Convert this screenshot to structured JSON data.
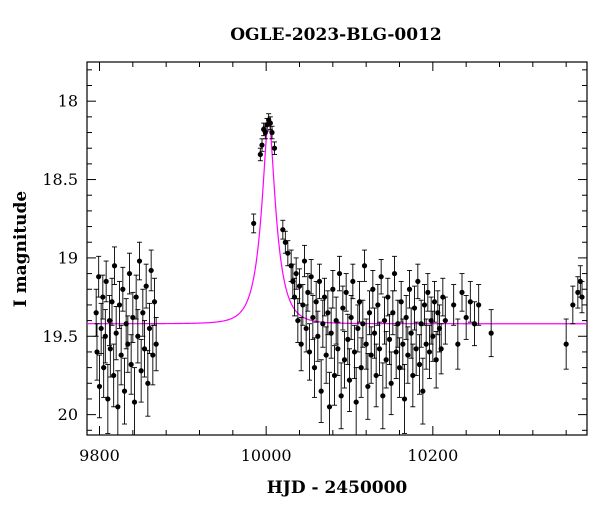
{
  "chart_data": {
    "type": "scatter",
    "title": "OGLE-2023-BLG-0012",
    "xlabel": "HJD - 2450000",
    "ylabel": "I magnitude",
    "xlim": [
      9785,
      10385
    ],
    "ylim": [
      20.13,
      17.75
    ],
    "y_inverted": true,
    "grid": false,
    "x_ticks": [
      9800,
      10000,
      10200
    ],
    "y_ticks": [
      18,
      18.5,
      19,
      19.5,
      20
    ],
    "x_tick_labels": [
      "9800",
      "10000",
      "10200"
    ],
    "y_tick_labels": [
      "18",
      "18.5",
      "19",
      "19.5",
      "20"
    ],
    "model": {
      "name": "",
      "color": "#ff00ff",
      "baseline_mag": 19.42,
      "peak_mag": 18.12,
      "t0": 10003,
      "tE": 18
    },
    "series": [
      {
        "name": "",
        "color": "#000000",
        "marker": "circle",
        "points": [
          {
            "x": 9796,
            "y": 19.35,
            "err": 0.15
          },
          {
            "x": 9797,
            "y": 19.6,
            "err": 0.18
          },
          {
            "x": 9799,
            "y": 19.12,
            "err": 0.13
          },
          {
            "x": 9800,
            "y": 19.82,
            "err": 0.2
          },
          {
            "x": 9802,
            "y": 19.45,
            "err": 0.16
          },
          {
            "x": 9804,
            "y": 19.25,
            "err": 0.14
          },
          {
            "x": 9805,
            "y": 19.7,
            "err": 0.19
          },
          {
            "x": 9807,
            "y": 19.5,
            "err": 0.17
          },
          {
            "x": 9808,
            "y": 19.15,
            "err": 0.13
          },
          {
            "x": 9810,
            "y": 19.9,
            "err": 0.22
          },
          {
            "x": 9812,
            "y": 19.4,
            "err": 0.16
          },
          {
            "x": 9813,
            "y": 19.58,
            "err": 0.18
          },
          {
            "x": 9815,
            "y": 19.28,
            "err": 0.15
          },
          {
            "x": 9817,
            "y": 19.75,
            "err": 0.2
          },
          {
            "x": 9818,
            "y": 19.05,
            "err": 0.12
          },
          {
            "x": 9820,
            "y": 19.48,
            "err": 0.17
          },
          {
            "x": 9822,
            "y": 19.95,
            "err": 0.23
          },
          {
            "x": 9824,
            "y": 19.3,
            "err": 0.15
          },
          {
            "x": 9826,
            "y": 19.62,
            "err": 0.19
          },
          {
            "x": 9828,
            "y": 19.2,
            "err": 0.14
          },
          {
            "x": 9830,
            "y": 19.85,
            "err": 0.21
          },
          {
            "x": 9832,
            "y": 19.42,
            "err": 0.16
          },
          {
            "x": 9834,
            "y": 19.55,
            "err": 0.18
          },
          {
            "x": 9836,
            "y": 19.1,
            "err": 0.13
          },
          {
            "x": 9838,
            "y": 19.68,
            "err": 0.19
          },
          {
            "x": 9840,
            "y": 19.38,
            "err": 0.16
          },
          {
            "x": 9842,
            "y": 19.92,
            "err": 0.22
          },
          {
            "x": 9844,
            "y": 19.25,
            "err": 0.14
          },
          {
            "x": 9846,
            "y": 19.5,
            "err": 0.17
          },
          {
            "x": 9848,
            "y": 19.02,
            "err": 0.12
          },
          {
            "x": 9850,
            "y": 19.72,
            "err": 0.2
          },
          {
            "x": 9852,
            "y": 19.35,
            "err": 0.15
          },
          {
            "x": 9854,
            "y": 19.58,
            "err": 0.18
          },
          {
            "x": 9856,
            "y": 19.18,
            "err": 0.14
          },
          {
            "x": 9858,
            "y": 19.8,
            "err": 0.21
          },
          {
            "x": 9860,
            "y": 19.45,
            "err": 0.16
          },
          {
            "x": 9862,
            "y": 19.08,
            "err": 0.13
          },
          {
            "x": 9864,
            "y": 19.62,
            "err": 0.19
          },
          {
            "x": 9866,
            "y": 19.28,
            "err": 0.15
          },
          {
            "x": 9868,
            "y": 19.55,
            "err": 0.17
          },
          {
            "x": 9985,
            "y": 18.78,
            "err": 0.06
          },
          {
            "x": 9993,
            "y": 18.34,
            "err": 0.04
          },
          {
            "x": 9995,
            "y": 18.28,
            "err": 0.04
          },
          {
            "x": 9997,
            "y": 18.18,
            "err": 0.04
          },
          {
            "x": 9999,
            "y": 18.2,
            "err": 0.04
          },
          {
            "x": 10001,
            "y": 18.15,
            "err": 0.04
          },
          {
            "x": 10003,
            "y": 18.12,
            "err": 0.04
          },
          {
            "x": 10005,
            "y": 18.14,
            "err": 0.04
          },
          {
            "x": 10007,
            "y": 18.2,
            "err": 0.04
          },
          {
            "x": 10010,
            "y": 18.3,
            "err": 0.04
          },
          {
            "x": 10020,
            "y": 18.82,
            "err": 0.06
          },
          {
            "x": 10023,
            "y": 18.9,
            "err": 0.07
          },
          {
            "x": 10026,
            "y": 18.97,
            "err": 0.08
          },
          {
            "x": 10030,
            "y": 19.05,
            "err": 0.1
          },
          {
            "x": 10032,
            "y": 19.15,
            "err": 0.11
          },
          {
            "x": 10034,
            "y": 19.25,
            "err": 0.12
          },
          {
            "x": 10036,
            "y": 19.1,
            "err": 0.1
          },
          {
            "x": 10038,
            "y": 19.4,
            "err": 0.14
          },
          {
            "x": 10040,
            "y": 19.18,
            "err": 0.11
          },
          {
            "x": 10042,
            "y": 19.55,
            "err": 0.17
          },
          {
            "x": 10044,
            "y": 19.3,
            "err": 0.13
          },
          {
            "x": 10046,
            "y": 19.02,
            "err": 0.1
          },
          {
            "x": 10048,
            "y": 19.45,
            "err": 0.15
          },
          {
            "x": 10050,
            "y": 19.22,
            "err": 0.12
          },
          {
            "x": 10052,
            "y": 19.6,
            "err": 0.18
          },
          {
            "x": 10054,
            "y": 19.12,
            "err": 0.11
          },
          {
            "x": 10056,
            "y": 19.38,
            "err": 0.14
          },
          {
            "x": 10058,
            "y": 19.7,
            "err": 0.19
          },
          {
            "x": 10060,
            "y": 19.28,
            "err": 0.13
          },
          {
            "x": 10062,
            "y": 19.5,
            "err": 0.16
          },
          {
            "x": 10064,
            "y": 19.15,
            "err": 0.11
          },
          {
            "x": 10066,
            "y": 19.85,
            "err": 0.2
          },
          {
            "x": 10068,
            "y": 19.42,
            "err": 0.15
          },
          {
            "x": 10070,
            "y": 19.25,
            "err": 0.12
          },
          {
            "x": 10072,
            "y": 19.62,
            "err": 0.18
          },
          {
            "x": 10074,
            "y": 19.35,
            "err": 0.14
          },
          {
            "x": 10076,
            "y": 19.95,
            "err": 0.22
          },
          {
            "x": 10078,
            "y": 19.48,
            "err": 0.16
          },
          {
            "x": 10080,
            "y": 19.2,
            "err": 0.12
          },
          {
            "x": 10082,
            "y": 19.75,
            "err": 0.19
          },
          {
            "x": 10084,
            "y": 19.4,
            "err": 0.15
          },
          {
            "x": 10086,
            "y": 19.58,
            "err": 0.17
          },
          {
            "x": 10088,
            "y": 19.1,
            "err": 0.11
          },
          {
            "x": 10090,
            "y": 19.88,
            "err": 0.21
          },
          {
            "x": 10092,
            "y": 19.32,
            "err": 0.14
          },
          {
            "x": 10094,
            "y": 19.65,
            "err": 0.18
          },
          {
            "x": 10096,
            "y": 19.22,
            "err": 0.12
          },
          {
            "x": 10098,
            "y": 19.52,
            "err": 0.16
          },
          {
            "x": 10100,
            "y": 19.78,
            "err": 0.2
          },
          {
            "x": 10102,
            "y": 19.38,
            "err": 0.14
          },
          {
            "x": 10104,
            "y": 19.15,
            "err": 0.11
          },
          {
            "x": 10106,
            "y": 19.6,
            "err": 0.17
          },
          {
            "x": 10108,
            "y": 19.92,
            "err": 0.22
          },
          {
            "x": 10110,
            "y": 19.45,
            "err": 0.15
          },
          {
            "x": 10112,
            "y": 19.28,
            "err": 0.13
          },
          {
            "x": 10114,
            "y": 19.7,
            "err": 0.19
          },
          {
            "x": 10116,
            "y": 19.42,
            "err": 0.15
          },
          {
            "x": 10118,
            "y": 19.05,
            "err": 0.1
          },
          {
            "x": 10120,
            "y": 19.55,
            "err": 0.16
          },
          {
            "x": 10122,
            "y": 19.82,
            "err": 0.21
          },
          {
            "x": 10124,
            "y": 19.35,
            "err": 0.14
          },
          {
            "x": 10126,
            "y": 19.62,
            "err": 0.18
          },
          {
            "x": 10128,
            "y": 19.2,
            "err": 0.12
          },
          {
            "x": 10130,
            "y": 19.48,
            "err": 0.16
          },
          {
            "x": 10132,
            "y": 19.75,
            "err": 0.2
          },
          {
            "x": 10134,
            "y": 19.3,
            "err": 0.13
          },
          {
            "x": 10136,
            "y": 19.58,
            "err": 0.17
          },
          {
            "x": 10138,
            "y": 19.12,
            "err": 0.11
          },
          {
            "x": 10140,
            "y": 19.88,
            "err": 0.21
          },
          {
            "x": 10142,
            "y": 19.4,
            "err": 0.15
          },
          {
            "x": 10144,
            "y": 19.65,
            "err": 0.18
          },
          {
            "x": 10146,
            "y": 19.25,
            "err": 0.12
          },
          {
            "x": 10148,
            "y": 19.52,
            "err": 0.16
          },
          {
            "x": 10150,
            "y": 19.8,
            "err": 0.2
          },
          {
            "x": 10152,
            "y": 19.35,
            "err": 0.14
          },
          {
            "x": 10154,
            "y": 19.1,
            "err": 0.11
          },
          {
            "x": 10156,
            "y": 19.6,
            "err": 0.17
          },
          {
            "x": 10158,
            "y": 19.42,
            "err": 0.15
          },
          {
            "x": 10160,
            "y": 19.7,
            "err": 0.19
          },
          {
            "x": 10162,
            "y": 19.28,
            "err": 0.13
          },
          {
            "x": 10164,
            "y": 19.55,
            "err": 0.16
          },
          {
            "x": 10166,
            "y": 19.9,
            "err": 0.22
          },
          {
            "x": 10168,
            "y": 19.38,
            "err": 0.14
          },
          {
            "x": 10170,
            "y": 19.62,
            "err": 0.18
          },
          {
            "x": 10172,
            "y": 19.2,
            "err": 0.12
          },
          {
            "x": 10174,
            "y": 19.48,
            "err": 0.16
          },
          {
            "x": 10176,
            "y": 19.75,
            "err": 0.2
          },
          {
            "x": 10178,
            "y": 19.32,
            "err": 0.14
          },
          {
            "x": 10180,
            "y": 19.58,
            "err": 0.17
          },
          {
            "x": 10182,
            "y": 19.15,
            "err": 0.11
          },
          {
            "x": 10184,
            "y": 19.68,
            "err": 0.19
          },
          {
            "x": 10186,
            "y": 19.42,
            "err": 0.15
          },
          {
            "x": 10188,
            "y": 19.85,
            "err": 0.21
          },
          {
            "x": 10190,
            "y": 19.3,
            "err": 0.13
          },
          {
            "x": 10192,
            "y": 19.55,
            "err": 0.16
          },
          {
            "x": 10194,
            "y": 19.22,
            "err": 0.12
          },
          {
            "x": 10196,
            "y": 19.6,
            "err": 0.17
          },
          {
            "x": 10198,
            "y": 19.4,
            "err": 0.15
          },
          {
            "x": 10200,
            "y": 19.5,
            "err": 0.16
          },
          {
            "x": 10202,
            "y": 19.28,
            "err": 0.13
          },
          {
            "x": 10204,
            "y": 19.65,
            "err": 0.18
          },
          {
            "x": 10206,
            "y": 19.35,
            "err": 0.14
          },
          {
            "x": 10208,
            "y": 19.45,
            "err": 0.15
          },
          {
            "x": 10210,
            "y": 19.58,
            "err": 0.16
          },
          {
            "x": 10212,
            "y": 19.25,
            "err": 0.12
          },
          {
            "x": 10215,
            "y": 19.4,
            "err": 0.15
          },
          {
            "x": 10225,
            "y": 19.3,
            "err": 0.13
          },
          {
            "x": 10230,
            "y": 19.55,
            "err": 0.16
          },
          {
            "x": 10235,
            "y": 19.22,
            "err": 0.12
          },
          {
            "x": 10240,
            "y": 19.38,
            "err": 0.14
          },
          {
            "x": 10245,
            "y": 19.28,
            "err": 0.13
          },
          {
            "x": 10250,
            "y": 19.42,
            "err": 0.14
          },
          {
            "x": 10255,
            "y": 19.3,
            "err": 0.13
          },
          {
            "x": 10270,
            "y": 19.48,
            "err": 0.15
          },
          {
            "x": 10360,
            "y": 19.55,
            "err": 0.16
          },
          {
            "x": 10368,
            "y": 19.3,
            "err": 0.12
          },
          {
            "x": 10374,
            "y": 19.22,
            "err": 0.1
          },
          {
            "x": 10377,
            "y": 19.15,
            "err": 0.1
          },
          {
            "x": 10379,
            "y": 19.25,
            "err": 0.1
          }
        ]
      }
    ]
  }
}
